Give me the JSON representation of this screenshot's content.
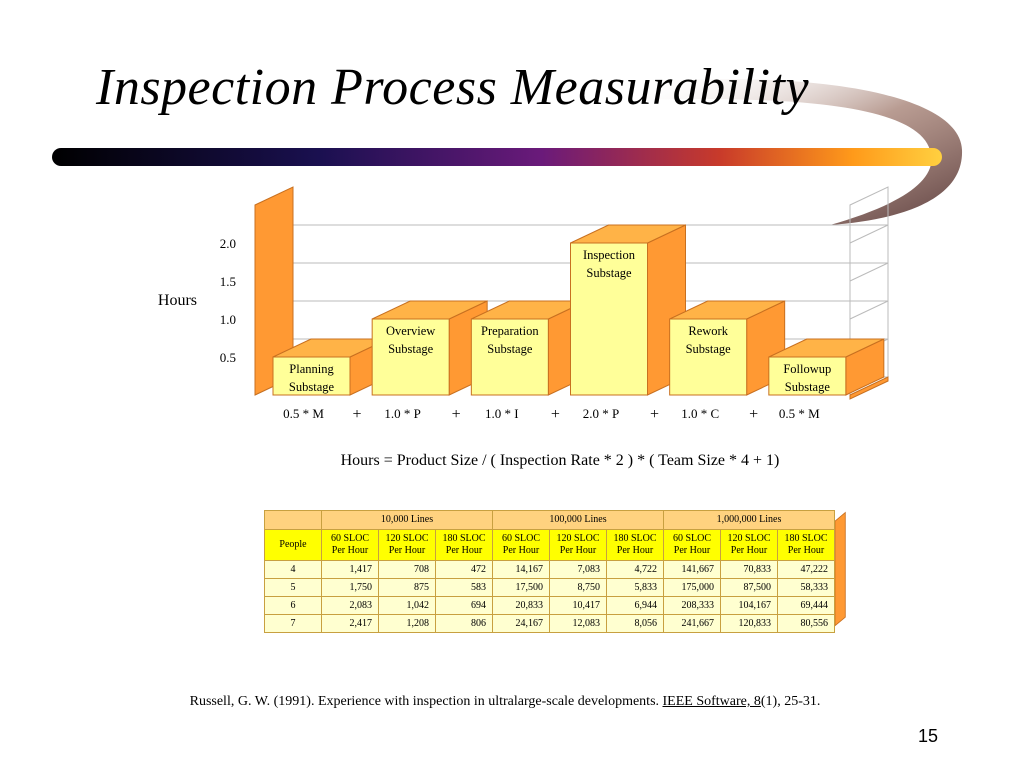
{
  "slide": {
    "title": "Inspection Process Measurability",
    "page_number": "15"
  },
  "chart_data": {
    "type": "bar",
    "ylabel": "Hours",
    "ylim": [
      0,
      2.0
    ],
    "yticks": [
      "0.5",
      "1.0",
      "1.5",
      "2.0"
    ],
    "categories": [
      "Planning Substage",
      "Overview Substage",
      "Preparation Substage",
      "Inspection Substage",
      "Rework Substage",
      "Followup Substage"
    ],
    "label_lines": [
      [
        "Planning",
        "Substage"
      ],
      [
        "Overview",
        "Substage"
      ],
      [
        "Preparation",
        "Substage"
      ],
      [
        "Inspection",
        "Substage"
      ],
      [
        "Rework",
        "Substage"
      ],
      [
        "Followup",
        "Substage"
      ]
    ],
    "values": [
      0.5,
      1.0,
      1.0,
      2.0,
      1.0,
      0.5
    ],
    "x_labels": [
      "0.5 * M",
      "1.0 * P",
      "1.0 * I",
      "2.0 * P",
      "1.0 * C",
      "0.5 * M"
    ],
    "operators": [
      "+",
      "+",
      "+",
      "+",
      "+"
    ],
    "colors": {
      "bar_front": "#ffff99",
      "bar_side": "#ff9933",
      "bar_top": "#ffb347",
      "wall": "#ffcc66"
    }
  },
  "formula": "Hours = Product Size / ( Inspection Rate * 2 ) * ( Team Size * 4 + 1)",
  "table": {
    "corner": "",
    "groups": [
      "10,000 Lines",
      "100,000 Lines",
      "1,000,000 Lines"
    ],
    "row_header": "People",
    "subheaders": [
      "60 SLOC\nPer Hour",
      "120 SLOC\nPer Hour",
      "180 SLOC\nPer Hour",
      "60 SLOC\nPer Hour",
      "120 SLOC\nPer Hour",
      "180 SLOC\nPer Hour",
      "60 SLOC\nPer Hour",
      "120 SLOC\nPer Hour",
      "180 SLOC\nPer Hour"
    ],
    "rows": [
      [
        "4",
        "1,417",
        "708",
        "472",
        "14,167",
        "7,083",
        "4,722",
        "141,667",
        "70,833",
        "47,222"
      ],
      [
        "5",
        "1,750",
        "875",
        "583",
        "17,500",
        "8,750",
        "5,833",
        "175,000",
        "87,500",
        "58,333"
      ],
      [
        "6",
        "2,083",
        "1,042",
        "694",
        "20,833",
        "10,417",
        "6,944",
        "208,333",
        "104,167",
        "69,444"
      ],
      [
        "7",
        "2,417",
        "1,208",
        "806",
        "24,167",
        "12,083",
        "8,056",
        "241,667",
        "120,833",
        "80,556"
      ]
    ]
  },
  "citation": {
    "text_before": "Russell, G. W. (1991). Experience with inspection in ultralarge-scale developments. ",
    "journal": "IEEE Software, 8",
    "text_after": "(1), 25-31."
  }
}
